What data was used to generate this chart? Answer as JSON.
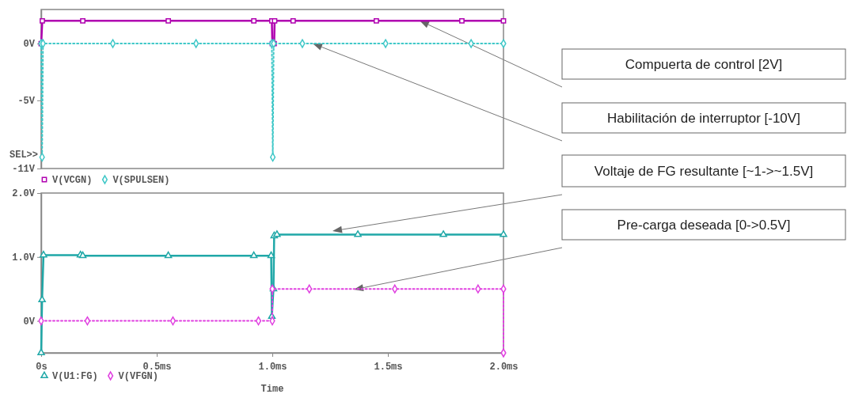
{
  "chart_data": [
    {
      "type": "line",
      "xlim": [
        0,
        2
      ],
      "ylim": [
        -11,
        3
      ],
      "yticks": [
        {
          "value": 0,
          "label": "0V"
        },
        {
          "value": -5,
          "label": "-5V"
        },
        {
          "value": -11,
          "label": "-11V"
        }
      ],
      "tick_labels": "y",
      "legend": "bottom left",
      "grid": false,
      "series": [
        {
          "name": "V(VCGN)",
          "color": "#b000b0",
          "marker": "square",
          "line_style": "solid",
          "x": [
            0,
            0.005,
            0.18,
            0.55,
            0.92,
            0.998,
            1.0,
            1.008,
            1.01,
            1.09,
            1.45,
            1.82,
            2.0
          ],
          "values": [
            0,
            2,
            2,
            2,
            2,
            2,
            0,
            0,
            2,
            2,
            2,
            2,
            2
          ]
        },
        {
          "name": "V(SPULSEN)",
          "color": "#40c8c8",
          "marker": "diamond",
          "line_style": "dotted",
          "x": [
            0,
            0.004,
            0.008,
            0.31,
            0.67,
            0.998,
            1.002,
            1.006,
            1.13,
            1.49,
            1.86,
            2.0
          ],
          "values": [
            0,
            -10,
            0,
            0,
            0,
            0,
            -10,
            0,
            0,
            0,
            0,
            0
          ]
        }
      ],
      "annotations": [
        "SEL>>",
        "Compuerta de control [2V]",
        "Habilitación de interruptor [-10V]"
      ]
    },
    {
      "type": "line",
      "xlim": [
        0,
        2
      ],
      "ylim": [
        -0.5,
        2
      ],
      "xlabel": "Time",
      "xticks": [
        {
          "value": 0,
          "label": "0s"
        },
        {
          "value": 0.5,
          "label": "0.5ms"
        },
        {
          "value": 1,
          "label": "1.0ms"
        },
        {
          "value": 1.5,
          "label": "1.5ms"
        },
        {
          "value": 2,
          "label": "2.0ms"
        }
      ],
      "yticks": [
        {
          "value": 2,
          "label": "2.0V"
        },
        {
          "value": 1,
          "label": "1.0V"
        },
        {
          "value": 0,
          "label": "0V"
        }
      ],
      "legend": "bottom left",
      "grid": false,
      "series": [
        {
          "name": "V(U1:FG)",
          "color": "#20a8a8",
          "marker": "triangle",
          "line_style": "solid",
          "x": [
            0,
            0.004,
            0.01,
            0.17,
            0.18,
            0.55,
            0.92,
            0.995,
            0.998,
            1.005,
            1.008,
            1.02,
            1.37,
            1.74,
            2.0
          ],
          "values": [
            -0.5,
            0.33,
            1.03,
            1.03,
            1.02,
            1.02,
            1.02,
            1.02,
            0.07,
            0.5,
            1.33,
            1.35,
            1.35,
            1.35,
            1.35
          ]
        },
        {
          "name": "V(VFGN)",
          "color": "#e040e0",
          "marker": "diamond",
          "line_style": "dotted",
          "x": [
            0,
            0.2,
            0.57,
            0.94,
            1.0,
            1.0,
            1.16,
            1.53,
            1.89,
            2.0,
            2.0
          ],
          "values": [
            0,
            0,
            0,
            0,
            0,
            0.5,
            0.5,
            0.5,
            0.5,
            0.5,
            -0.5
          ]
        }
      ],
      "annotations": [
        "Voltaje de FG resultante [~1->~1.5V]",
        "Pre-carga deseada [0->0.5V]"
      ]
    }
  ]
}
